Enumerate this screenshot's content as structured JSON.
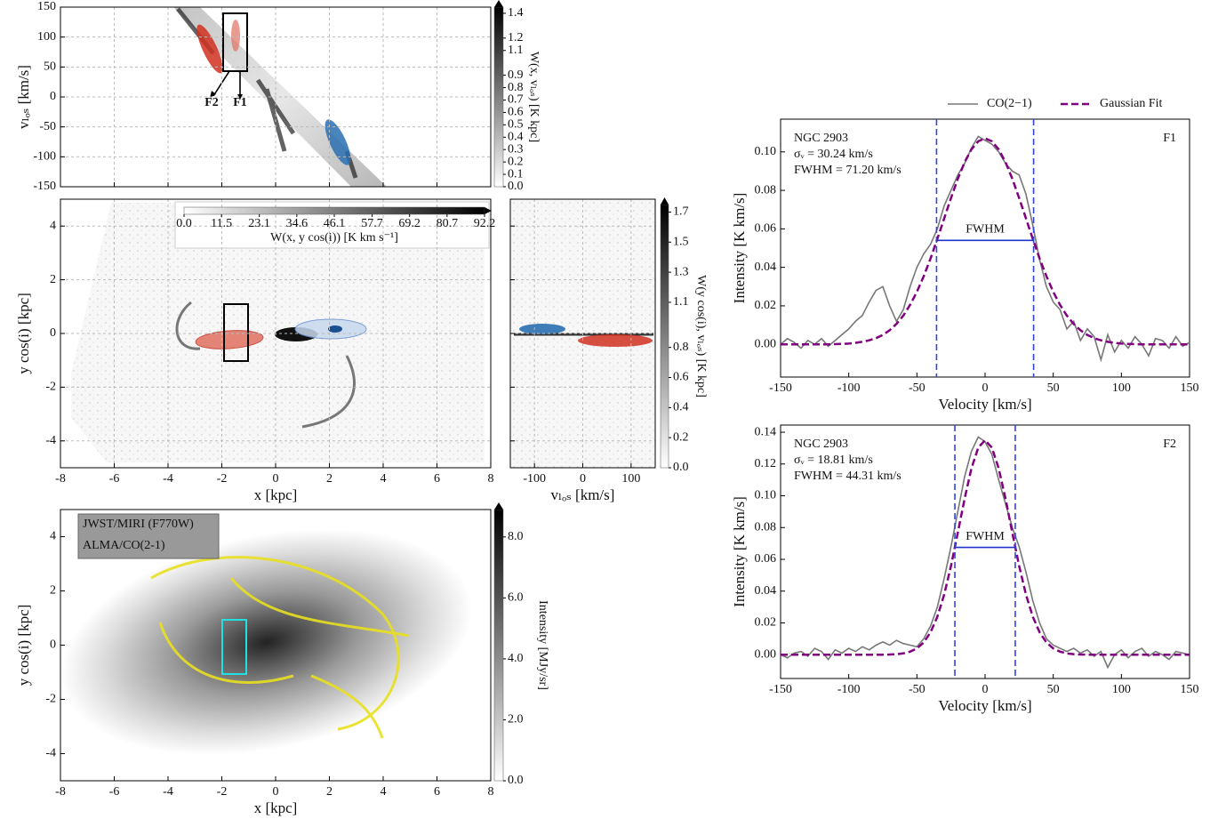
{
  "chart_data": [
    {
      "type": "image",
      "ylabel": "vₗₒₛ [km/s]",
      "xlim": [
        -8,
        8
      ],
      "xticks": [
        -8,
        -6,
        -4,
        -2,
        0,
        2,
        4,
        6,
        8
      ],
      "x_ticklabels": false,
      "ylim": [
        -150,
        150
      ],
      "yticks": [
        -150,
        -100,
        -50,
        0,
        50,
        100,
        150
      ],
      "grid": true,
      "annotations": [
        "F2",
        "F1"
      ],
      "colorbar": {
        "label": "W(x, vₗₒₛ) [K kpc]",
        "lim": [
          0,
          1.45
        ],
        "ticks": [
          {
            "value": 0,
            "label": "0.0"
          },
          0.1,
          0.2,
          0.3,
          0.4,
          0.5,
          0.6,
          0.7,
          0.8,
          0.9,
          1.1,
          1.2,
          1.4
        ]
      }
    },
    {
      "type": "image",
      "xlabel": "x [kpc]",
      "ylabel": "y cos(i) [kpc]",
      "xlim": [
        -8,
        8
      ],
      "xticks": [
        -8,
        -6,
        -4,
        -2,
        0,
        2,
        4,
        6,
        8
      ],
      "ylim": [
        -5,
        5
      ],
      "yticks": [
        -4,
        -2,
        0,
        2,
        4
      ],
      "grid": true,
      "colorbar": {
        "label": "W(x, y cos(i)) [K km s⁻¹]",
        "lim": [
          0,
          92.2
        ],
        "ticks": [
          {
            "value": 0,
            "label": "0.0"
          },
          11.5,
          23.1,
          34.6,
          46.1,
          57.7,
          69.2,
          80.7,
          92.2
        ]
      }
    },
    {
      "type": "image",
      "xlabel": "vₗₒₛ [km/s]",
      "xlim": [
        -150,
        150
      ],
      "xticks": [
        -100,
        0,
        100
      ],
      "ylim": [
        -5,
        5
      ],
      "yticks": [
        -4,
        -2,
        0,
        2,
        4
      ],
      "y_ticklabels": false,
      "grid": true,
      "colorbar": {
        "label": "W(y cos(i), vₗₒₛ) [K kpc]",
        "lim": [
          0,
          1.75
        ],
        "ticks": [
          {
            "value": 0,
            "label": "0.0"
          },
          0.2,
          0.4,
          0.6,
          0.8,
          1.1,
          1.3,
          1.5,
          1.7
        ]
      }
    },
    {
      "type": "image",
      "xlabel": "x [kpc]",
      "ylabel": "y cos(i) [kpc]",
      "xlim": [
        -8,
        8
      ],
      "xticks": [
        -8,
        -6,
        -4,
        -2,
        0,
        2,
        4,
        6,
        8
      ],
      "ylim": [
        -5,
        5
      ],
      "yticks": [
        -4,
        -2,
        0,
        2,
        4
      ],
      "grid": false,
      "legend_texts": [
        "JWST/MIRI (F770W)",
        "ALMA/CO(2-1)"
      ],
      "colorbar": {
        "label": "Intensity [MJy/sr]",
        "lim": [
          0,
          8.9
        ],
        "ticks": [
          {
            "value": 0,
            "label": "0.0"
          },
          {
            "value": 2,
            "label": "2.0"
          },
          {
            "value": 4,
            "label": "4.0"
          },
          {
            "value": 6,
            "label": "6.0"
          },
          {
            "value": 8,
            "label": "8.0"
          }
        ]
      }
    },
    {
      "type": "line",
      "xlabel": "Velocity [km/s]",
      "ylabel": "Intensity [K km/s]",
      "panel_label": "F1",
      "info": [
        "NGC 2903",
        "σᵥ = 30.24 km/s",
        "FWHM = 71.20 km/s"
      ],
      "fwhm_label": "FWHM",
      "fwhm_x": [
        -35.6,
        35.6
      ],
      "half_max": 0.054,
      "xlim": [
        -150,
        150
      ],
      "xticks": [
        -150,
        -100,
        -50,
        0,
        50,
        100,
        150
      ],
      "ylim": [
        -0.017,
        0.117
      ],
      "yticks": [
        {
          "value": 0,
          "label": "0.00"
        },
        0.02,
        0.04,
        0.06,
        0.08,
        {
          "value": 0.1,
          "label": "0.10"
        }
      ],
      "x": [
        -150,
        -145,
        -140,
        -135,
        -130,
        -125,
        -120,
        -115,
        -110,
        -105,
        -100,
        -95,
        -90,
        -85,
        -80,
        -75,
        -70,
        -65,
        -60,
        -55,
        -50,
        -45,
        -40,
        -35,
        -30,
        -25,
        -20,
        -15,
        -10,
        -5,
        0,
        5,
        10,
        15,
        20,
        25,
        30,
        35,
        40,
        45,
        50,
        55,
        60,
        65,
        70,
        75,
        80,
        85,
        90,
        95,
        100,
        105,
        110,
        115,
        120,
        125,
        130,
        135,
        140,
        145,
        150
      ],
      "series": [
        {
          "name": "CO(2−1)",
          "color": "#777777",
          "dashed": false,
          "values": [
            0.0,
            0.003,
            0.001,
            -0.002,
            0.002,
            0.0,
            0.003,
            -0.001,
            0.002,
            0.005,
            0.008,
            0.012,
            0.015,
            0.022,
            0.028,
            0.03,
            0.02,
            0.012,
            0.018,
            0.03,
            0.04,
            0.047,
            0.052,
            0.06,
            0.072,
            0.08,
            0.088,
            0.094,
            0.102,
            0.108,
            0.106,
            0.104,
            0.1,
            0.094,
            0.09,
            0.088,
            0.078,
            0.062,
            0.044,
            0.03,
            0.022,
            0.018,
            0.008,
            0.012,
            0.002,
            0.008,
            0.004,
            -0.008,
            0.005,
            -0.004,
            0.002,
            -0.002,
            0.004,
            0.0,
            -0.006,
            0.003,
            0.002,
            -0.002,
            0.004,
            -0.001,
            0.001
          ]
        },
        {
          "name": "Gaussian Fit",
          "color": "#800080",
          "dashed": true,
          "values": [
            0,
            0,
            0,
            0,
            0,
            0,
            0,
            0,
            0.0001,
            0.0002,
            0.0004,
            0.0008,
            0.0013,
            0.0021,
            0.0032,
            0.0049,
            0.0073,
            0.0106,
            0.0149,
            0.0205,
            0.0273,
            0.0354,
            0.0446,
            0.0548,
            0.0654,
            0.076,
            0.086,
            0.0946,
            0.1013,
            0.1055,
            0.107,
            0.1055,
            0.1013,
            0.0946,
            0.086,
            0.076,
            0.0654,
            0.0548,
            0.0446,
            0.0354,
            0.0273,
            0.0205,
            0.0149,
            0.0106,
            0.0073,
            0.0049,
            0.0032,
            0.0021,
            0.0013,
            0.0008,
            0.0004,
            0.0002,
            0.0001,
            0,
            0,
            0,
            0,
            0,
            0,
            0,
            0
          ]
        }
      ]
    },
    {
      "type": "line",
      "xlabel": "Velocity [km/s]",
      "ylabel": "Intensity [K km/s]",
      "panel_label": "F2",
      "info": [
        "NGC 2903",
        "σᵥ = 18.81 km/s",
        "FWHM = 44.31 km/s"
      ],
      "fwhm_label": "FWHM",
      "fwhm_x": [
        -22.15,
        22.15
      ],
      "half_max": 0.0675,
      "xlim": [
        -150,
        150
      ],
      "xticks": [
        -150,
        -100,
        -50,
        0,
        50,
        100,
        150
      ],
      "ylim": [
        -0.015,
        0.1445
      ],
      "yticks": [
        {
          "value": 0,
          "label": "0.00"
        },
        0.02,
        0.04,
        0.06,
        0.08,
        {
          "value": 0.1,
          "label": "0.10"
        },
        0.12,
        0.14
      ],
      "x": [
        -150,
        -145,
        -140,
        -135,
        -130,
        -125,
        -120,
        -115,
        -110,
        -105,
        -100,
        -95,
        -90,
        -85,
        -80,
        -75,
        -70,
        -65,
        -60,
        -55,
        -50,
        -45,
        -40,
        -35,
        -30,
        -25,
        -20,
        -15,
        -10,
        -5,
        0,
        5,
        10,
        15,
        20,
        25,
        30,
        35,
        40,
        45,
        50,
        55,
        60,
        65,
        70,
        75,
        80,
        85,
        90,
        95,
        100,
        105,
        110,
        115,
        120,
        125,
        130,
        135,
        140,
        145,
        150
      ],
      "series": [
        {
          "color": "#777777",
          "dashed": false,
          "values": [
            0.0,
            -0.002,
            0.001,
            0.002,
            -0.001,
            0.004,
            0.002,
            -0.003,
            0.003,
            0.001,
            0.004,
            0.002,
            0.005,
            0.003,
            0.006,
            0.008,
            0.006,
            0.009,
            0.007,
            0.006,
            0.005,
            0.01,
            0.018,
            0.03,
            0.048,
            0.068,
            0.09,
            0.112,
            0.128,
            0.137,
            0.134,
            0.126,
            0.11,
            0.095,
            0.08,
            0.068,
            0.052,
            0.034,
            0.02,
            0.01,
            0.006,
            0.004,
            0.002,
            0.004,
            0.001,
            0.003,
            -0.001,
            0.002,
            -0.008,
            0.0,
            0.003,
            -0.002,
            0.002,
            0.004,
            -0.001,
            0.002,
            0.0,
            -0.003,
            0.002,
            0.001,
            0.0
          ]
        },
        {
          "color": "#800080",
          "dashed": true,
          "values": [
            0,
            0,
            0,
            0,
            0,
            0,
            0,
            0,
            0,
            0,
            0,
            0,
            0,
            0,
            0,
            0,
            0.0001,
            0.0003,
            0.0008,
            0.0019,
            0.0039,
            0.0077,
            0.0141,
            0.0239,
            0.0378,
            0.0558,
            0.0767,
            0.0982,
            0.1172,
            0.1303,
            0.135,
            0.1303,
            0.1172,
            0.0982,
            0.0767,
            0.0558,
            0.0378,
            0.0239,
            0.0141,
            0.0077,
            0.0039,
            0.0019,
            0.0008,
            0.0003,
            0.0001,
            0,
            0,
            0,
            0,
            0,
            0,
            0,
            0,
            0,
            0,
            0,
            0,
            0,
            0,
            0,
            0
          ]
        }
      ]
    }
  ]
}
